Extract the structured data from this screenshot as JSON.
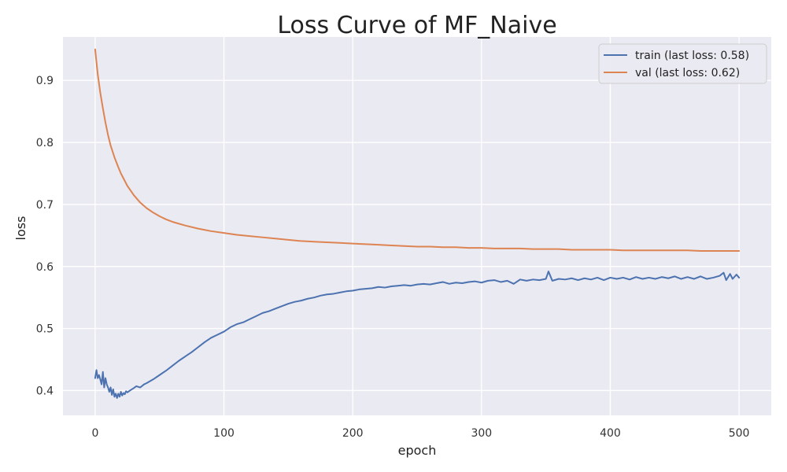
{
  "chart_data": {
    "type": "line",
    "title": "Loss Curve of MF_Naive",
    "xlabel": "epoch",
    "ylabel": "loss",
    "xlim": [
      -25,
      525
    ],
    "ylim": [
      0.36,
      0.97
    ],
    "xticks": [
      0,
      100,
      200,
      300,
      400,
      500
    ],
    "yticks": [
      0.4,
      0.5,
      0.6,
      0.7,
      0.8,
      0.9
    ],
    "grid": true,
    "legend_position": "top-right",
    "series": [
      {
        "name": "train (last loss: 0.58)",
        "color": "#4c72b0",
        "x": [
          0,
          1,
          2,
          3,
          4,
          5,
          6,
          7,
          8,
          9,
          10,
          11,
          12,
          13,
          14,
          15,
          16,
          17,
          18,
          19,
          20,
          21,
          22,
          23,
          24,
          25,
          27,
          30,
          32,
          35,
          38,
          40,
          45,
          50,
          55,
          60,
          65,
          70,
          75,
          80,
          85,
          90,
          95,
          100,
          105,
          110,
          115,
          120,
          125,
          130,
          135,
          140,
          145,
          150,
          155,
          160,
          165,
          170,
          175,
          180,
          185,
          190,
          195,
          200,
          205,
          210,
          215,
          220,
          225,
          230,
          235,
          240,
          245,
          250,
          255,
          260,
          265,
          270,
          275,
          280,
          285,
          290,
          295,
          300,
          305,
          310,
          315,
          320,
          325,
          330,
          335,
          340,
          345,
          350,
          352,
          355,
          360,
          365,
          370,
          375,
          380,
          385,
          390,
          395,
          400,
          405,
          410,
          415,
          420,
          425,
          430,
          435,
          440,
          445,
          450,
          455,
          460,
          465,
          470,
          475,
          480,
          485,
          488,
          490,
          493,
          495,
          498,
          500
        ],
        "y": [
          0.42,
          0.433,
          0.42,
          0.425,
          0.418,
          0.41,
          0.43,
          0.405,
          0.42,
          0.41,
          0.405,
          0.398,
          0.405,
          0.393,
          0.402,
          0.39,
          0.395,
          0.388,
          0.395,
          0.39,
          0.398,
          0.392,
          0.396,
          0.394,
          0.399,
          0.397,
          0.4,
          0.404,
          0.407,
          0.405,
          0.41,
          0.412,
          0.418,
          0.425,
          0.432,
          0.44,
          0.448,
          0.455,
          0.462,
          0.47,
          0.478,
          0.485,
          0.49,
          0.495,
          0.502,
          0.507,
          0.51,
          0.515,
          0.52,
          0.525,
          0.528,
          0.532,
          0.536,
          0.54,
          0.543,
          0.545,
          0.548,
          0.55,
          0.553,
          0.555,
          0.556,
          0.558,
          0.56,
          0.561,
          0.563,
          0.564,
          0.565,
          0.567,
          0.566,
          0.568,
          0.569,
          0.57,
          0.569,
          0.571,
          0.572,
          0.571,
          0.573,
          0.575,
          0.572,
          0.574,
          0.573,
          0.575,
          0.576,
          0.574,
          0.577,
          0.578,
          0.575,
          0.577,
          0.572,
          0.579,
          0.577,
          0.579,
          0.578,
          0.58,
          0.592,
          0.577,
          0.58,
          0.579,
          0.581,
          0.578,
          0.581,
          0.579,
          0.582,
          0.578,
          0.582,
          0.58,
          0.582,
          0.579,
          0.583,
          0.58,
          0.582,
          0.58,
          0.583,
          0.581,
          0.584,
          0.58,
          0.583,
          0.58,
          0.584,
          0.58,
          0.582,
          0.585,
          0.59,
          0.578,
          0.588,
          0.58,
          0.587,
          0.582
        ]
      },
      {
        "name": "val (last loss: 0.62)",
        "color": "#dd8452",
        "x": [
          0,
          2,
          4,
          6,
          8,
          10,
          12,
          15,
          18,
          20,
          25,
          30,
          35,
          40,
          45,
          50,
          55,
          60,
          70,
          80,
          90,
          100,
          110,
          120,
          130,
          140,
          150,
          160,
          170,
          180,
          190,
          200,
          210,
          220,
          230,
          240,
          250,
          260,
          270,
          280,
          290,
          300,
          310,
          320,
          330,
          340,
          350,
          360,
          370,
          380,
          390,
          400,
          410,
          420,
          430,
          440,
          450,
          460,
          470,
          480,
          490,
          500
        ],
        "y": [
          0.95,
          0.91,
          0.88,
          0.855,
          0.832,
          0.812,
          0.795,
          0.776,
          0.76,
          0.75,
          0.73,
          0.715,
          0.703,
          0.694,
          0.687,
          0.681,
          0.676,
          0.672,
          0.666,
          0.661,
          0.657,
          0.654,
          0.651,
          0.649,
          0.647,
          0.645,
          0.643,
          0.641,
          0.64,
          0.639,
          0.638,
          0.637,
          0.636,
          0.635,
          0.634,
          0.633,
          0.632,
          0.632,
          0.631,
          0.631,
          0.63,
          0.63,
          0.629,
          0.629,
          0.629,
          0.628,
          0.628,
          0.628,
          0.627,
          0.627,
          0.627,
          0.627,
          0.626,
          0.626,
          0.626,
          0.626,
          0.626,
          0.626,
          0.625,
          0.625,
          0.625,
          0.625
        ]
      }
    ]
  }
}
